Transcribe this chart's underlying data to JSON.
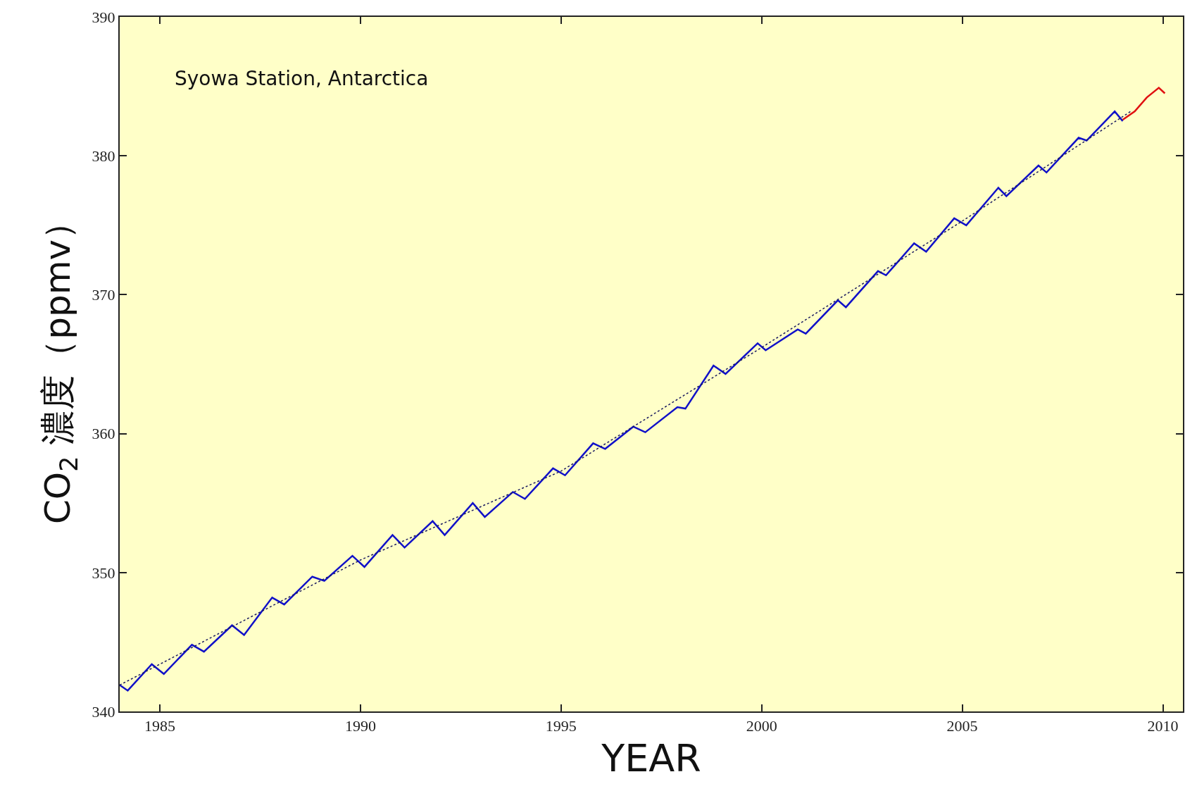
{
  "chart_data": {
    "type": "line",
    "xlabel": "YEAR",
    "ylabel": "CO$_{2}$ 濃度（ppmv）",
    "annotations": [
      "Syowa Station, Antarctica"
    ],
    "xlim": [
      1984,
      2010.5
    ],
    "xticks": [
      1985,
      1990,
      1995,
      2000,
      2005,
      2010
    ],
    "ylim": [
      340,
      390
    ],
    "yticks": [
      340,
      350,
      360,
      370,
      380,
      390
    ],
    "grid": false,
    "marker": "none",
    "series": [
      {
        "color": "#1010c8",
        "line_style": "solid",
        "x": [
          1984.0,
          1984.2,
          1984.8,
          1985.1,
          1985.8,
          1986.1,
          1986.8,
          1987.1,
          1987.8,
          1988.1,
          1988.8,
          1989.1,
          1989.8,
          1990.1,
          1990.8,
          1991.1,
          1991.8,
          1992.1,
          1992.8,
          1993.1,
          1993.8,
          1994.1,
          1994.8,
          1995.1,
          1995.8,
          1996.1,
          1996.8,
          1997.1,
          1997.9,
          1998.1,
          1998.8,
          1999.1,
          1999.9,
          2000.1,
          2000.9,
          2001.1,
          2001.9,
          2002.1,
          2002.9,
          2003.1,
          2003.8,
          2004.1,
          2004.8,
          2005.1,
          2005.9,
          2006.1,
          2006.9,
          2007.1,
          2007.9,
          2008.1,
          2008.8,
          2009.0
        ],
        "values": [
          341.9,
          341.5,
          343.4,
          342.7,
          344.8,
          344.3,
          346.2,
          345.5,
          348.2,
          347.7,
          349.7,
          349.4,
          351.2,
          350.4,
          352.7,
          351.8,
          353.7,
          352.7,
          355.0,
          354.0,
          355.8,
          355.3,
          357.5,
          357.0,
          359.3,
          358.9,
          360.5,
          360.1,
          361.9,
          361.8,
          364.9,
          364.3,
          366.5,
          366.0,
          367.5,
          367.2,
          369.6,
          369.1,
          371.7,
          371.4,
          373.7,
          373.1,
          375.5,
          375.0,
          377.7,
          377.1,
          379.3,
          378.8,
          381.3,
          381.1,
          383.2,
          382.5
        ]
      },
      {
        "color": "#e01010",
        "line_style": "solid",
        "x": [
          2009.0,
          2009.3,
          2009.6,
          2009.9,
          2010.05
        ],
        "values": [
          382.6,
          383.2,
          384.2,
          384.9,
          384.5
        ]
      },
      {
        "color": "#1a1a60",
        "line_style": "dotted",
        "x": [
          1984.0,
          1990.0,
          1995.0,
          2000.0,
          2005.0,
          2009.2
        ],
        "values": [
          341.9,
          350.9,
          357.3,
          366.2,
          375.3,
          383.2
        ]
      }
    ]
  }
}
